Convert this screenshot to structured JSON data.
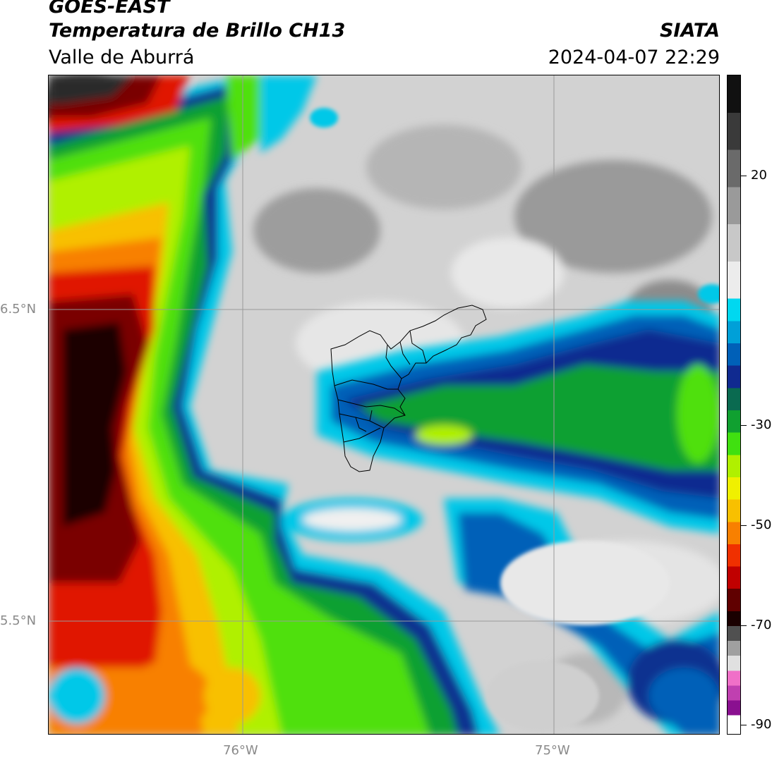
{
  "header": {
    "satellite": "GOES-EAST",
    "product": "Temperatura de Brillo CH13",
    "region": "Valle de Aburrá",
    "agency": "SIATA",
    "datetime": "2024-04-07 22:29"
  },
  "map": {
    "lat_labels": [
      "6.5°N",
      "5.5°N"
    ],
    "lon_labels": [
      "76°W",
      "75°W"
    ],
    "gridline_color": "#9a9a9a",
    "boundary_color": "#000000"
  },
  "colorbar": {
    "ticks": [
      "20",
      "-30",
      "-50",
      "-70",
      "-90"
    ],
    "stops": [
      {
        "c": "#111111"
      },
      {
        "c": "#3a3a3a"
      },
      {
        "c": "#6a6a6a"
      },
      {
        "c": "#9a9a9a"
      },
      {
        "c": "#c8c8c8"
      },
      {
        "c": "#ececec"
      },
      {
        "c": "#00d8f0"
      },
      {
        "c": "#00a0d8"
      },
      {
        "c": "#0060b8"
      },
      {
        "c": "#102a90"
      },
      {
        "c": "#0a6a50"
      },
      {
        "c": "#10a030"
      },
      {
        "c": "#40e010"
      },
      {
        "c": "#b0f000"
      },
      {
        "c": "#f0f000"
      },
      {
        "c": "#f8c000"
      },
      {
        "c": "#f88000"
      },
      {
        "c": "#f03000"
      },
      {
        "c": "#c00000"
      },
      {
        "c": "#600000"
      },
      {
        "c": "#1a0000"
      },
      {
        "c": "#505050"
      },
      {
        "c": "#a0a0a0"
      },
      {
        "c": "#e0e0e0"
      },
      {
        "c": "#f070c8"
      },
      {
        "c": "#c040b0"
      },
      {
        "c": "#8a1090"
      },
      {
        "c": "#ffffff"
      }
    ]
  }
}
